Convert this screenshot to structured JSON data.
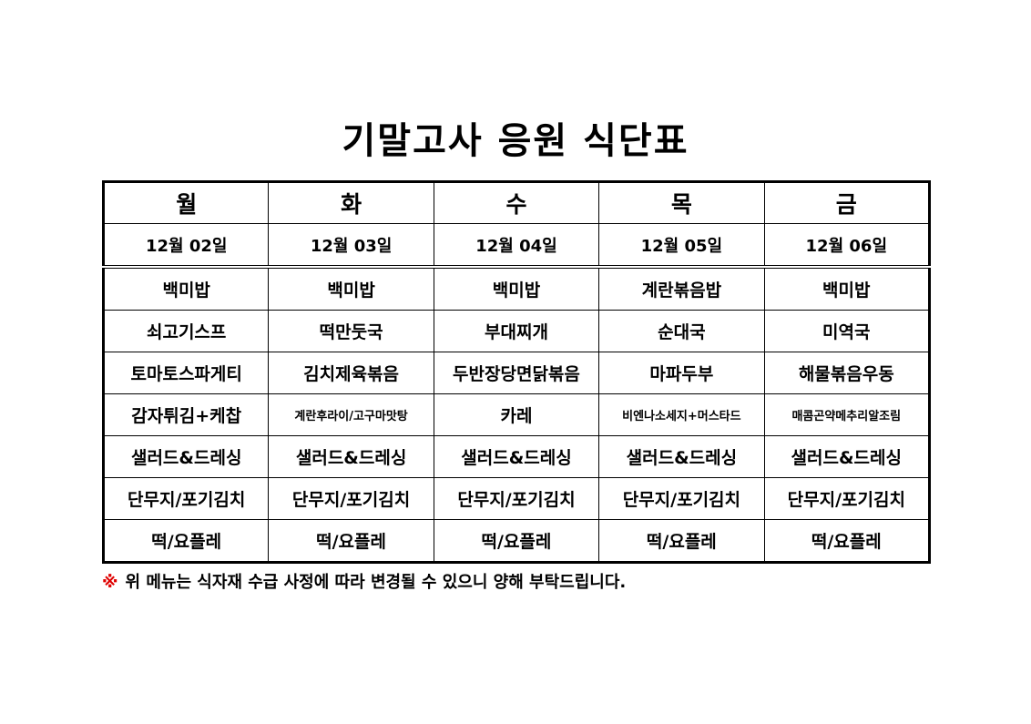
{
  "title": "기말고사 응원 식단표",
  "days": [
    "월",
    "화",
    "수",
    "목",
    "금"
  ],
  "dates": [
    "12월 02일",
    "12월 03일",
    "12월 04일",
    "12월 05일",
    "12월 06일"
  ],
  "menu_rows": [
    [
      "백미밥",
      "백미밥",
      "백미밥",
      "계란볶음밥",
      "백미밥"
    ],
    [
      "쇠고기스프",
      "떡만둣국",
      "부대찌개",
      "순대국",
      "미역국"
    ],
    [
      "토마토스파게티",
      "김치제육볶음",
      "두반장당면닭볶음",
      "마파두부",
      "해물볶음우동"
    ],
    [
      "감자튀김+케찹",
      "계란후라이/고구마맛탕",
      "카레",
      "비엔나소세지+머스타드",
      "매콤곤약메추리알조림"
    ],
    [
      "샐러드&드레싱",
      "샐러드&드레싱",
      "샐러드&드레싱",
      "샐러드&드레싱",
      "샐러드&드레싱"
    ],
    [
      "단무지/포기김치",
      "단무지/포기김치",
      "단무지/포기김치",
      "단무지/포기김치",
      "단무지/포기김치"
    ],
    [
      "떡/요플레",
      "떡/요플레",
      "떡/요플레",
      "떡/요플레",
      "떡/요플레"
    ]
  ],
  "note": {
    "mark": "※",
    "text": "위 메뉴는 식자재 수급 사정에 따라 변경될 수 있으니 양해 부탁드립니다."
  },
  "colors": {
    "note_mark": "#e00000"
  }
}
